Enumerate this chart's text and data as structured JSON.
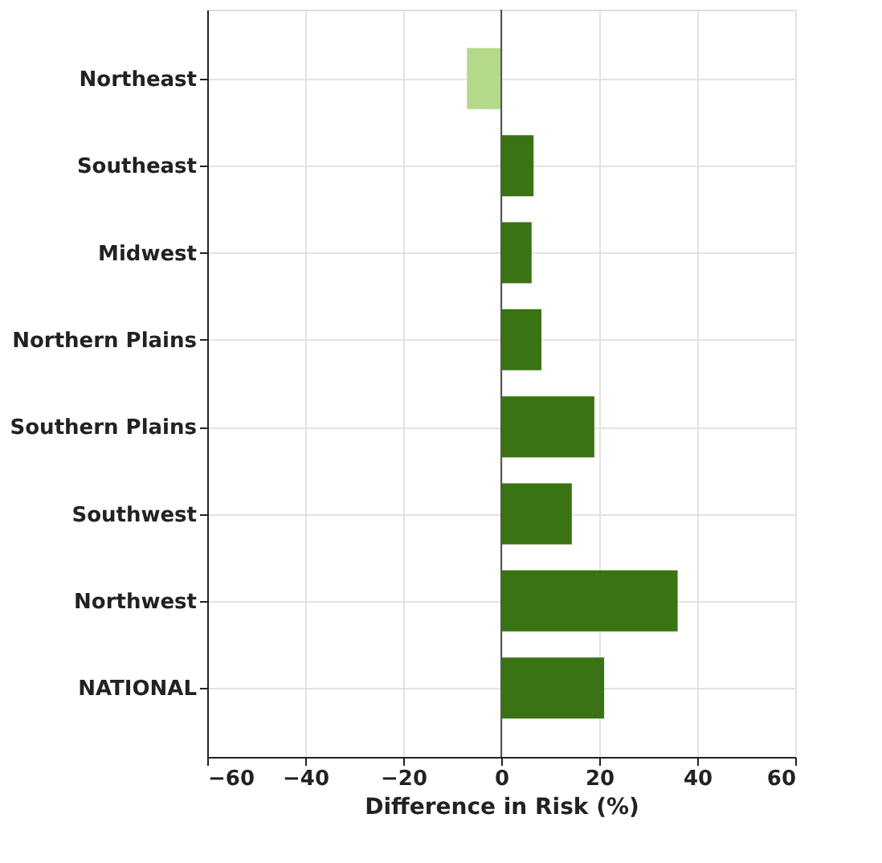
{
  "chart_data": {
    "type": "bar",
    "orientation": "horizontal",
    "xlabel": "Difference in Risk (%)",
    "categories": [
      "Northeast",
      "Southeast",
      "Midwest",
      "Northern Plains",
      "Southern Plains",
      "Southwest",
      "Northwest",
      "NATIONAL"
    ],
    "values": [
      -7,
      6.6,
      6.2,
      8.2,
      19,
      14.4,
      36,
      21
    ],
    "colors": [
      "#b5d98a",
      "#3a7314",
      "#3a7314",
      "#3a7314",
      "#3a7314",
      "#3a7314",
      "#3a7314",
      "#3a7314"
    ],
    "xlim": [
      -60,
      60
    ],
    "xticks": [
      -60,
      -40,
      -20,
      0,
      20,
      40,
      60
    ],
    "ref_lines": [
      {
        "axis": "x",
        "value": 0,
        "color": "#555555"
      }
    ],
    "grid": true
  }
}
